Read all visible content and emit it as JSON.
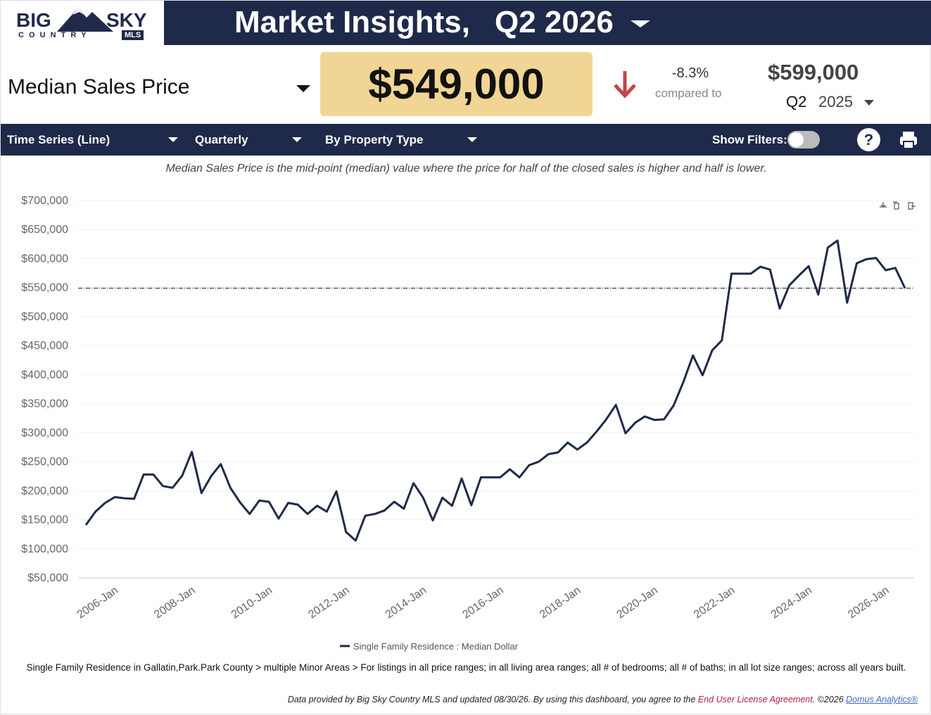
{
  "header": {
    "logo": {
      "big": "BIG",
      "sky": "SKY",
      "country": "C O U N T R Y",
      "mls": "MLS"
    },
    "title": "Market Insights,",
    "period": "Q2 2026"
  },
  "metric": {
    "name": "Median Sales Price",
    "value": "$549,000",
    "change": "-8.3%",
    "compared_label": "compared to",
    "compare_value": "$599,000",
    "compare_quarter": "Q2",
    "compare_year": "2025"
  },
  "toolbar": {
    "view": "Time Series (Line)",
    "interval": "Quarterly",
    "grouping": "By Property Type",
    "filters_label": "Show Filters:"
  },
  "description": "Median Sales Price is the mid-point (median) value where the price for half of the closed sales is higher and half is lower.",
  "chart_data": {
    "type": "line",
    "categories": [
      null,
      null,
      null,
      null,
      "2006-Jan",
      null,
      null,
      null,
      null,
      null,
      null,
      null,
      "2008-Jan",
      null,
      null,
      null,
      null,
      null,
      null,
      null,
      "2010-Jan",
      null,
      null,
      null,
      null,
      null,
      null,
      null,
      "2012-Jan",
      null,
      null,
      null,
      null,
      null,
      null,
      null,
      "2014-Jan",
      null,
      null,
      null,
      null,
      null,
      null,
      null,
      "2016-Jan",
      null,
      null,
      null,
      null,
      null,
      null,
      null,
      "2018-Jan",
      null,
      null,
      null,
      null,
      null,
      null,
      null,
      "2020-Jan",
      null,
      null,
      null,
      null,
      null,
      null,
      null,
      "2022-Jan",
      null,
      null,
      null,
      null,
      null,
      null,
      null,
      "2024-Jan",
      null,
      null,
      null,
      null,
      null,
      null,
      null,
      "2026-Jan",
      null
    ],
    "series": [
      {
        "name": "Single Family Residence : Median Dollar",
        "color": "#1f2a4a",
        "values": [
          141000,
          164000,
          179000,
          189000,
          187000,
          186000,
          228000,
          228000,
          208000,
          205000,
          226000,
          267000,
          196000,
          225000,
          246000,
          205000,
          180000,
          160000,
          183000,
          181000,
          152000,
          179000,
          176000,
          160000,
          174000,
          164000,
          199000,
          129000,
          114000,
          157000,
          160000,
          166000,
          181000,
          169000,
          213000,
          188000,
          149000,
          188000,
          174000,
          221000,
          175000,
          223000,
          223000,
          223000,
          237000,
          223000,
          244000,
          250000,
          263000,
          266000,
          283000,
          271000,
          283000,
          302000,
          323000,
          348000,
          299000,
          317000,
          328000,
          322000,
          323000,
          347000,
          387000,
          433000,
          399000,
          442000,
          459000,
          574000,
          574000,
          574000,
          586000,
          581000,
          514000,
          554000,
          571000,
          587000,
          538000,
          619000,
          631000,
          524000,
          592000,
          599000,
          601000,
          580000,
          584000,
          549000
        ]
      }
    ],
    "ylim": [
      50000,
      700000
    ],
    "yticks": [
      {
        "value": 50000,
        "label": "$50,000"
      },
      {
        "value": 100000,
        "label": "$100,000"
      },
      {
        "value": 150000,
        "label": "$150,000"
      },
      {
        "value": 200000,
        "label": "$200,000"
      },
      {
        "value": 250000,
        "label": "$250,000"
      },
      {
        "value": 300000,
        "label": "$300,000"
      },
      {
        "value": 350000,
        "label": "$350,000"
      },
      {
        "value": 400000,
        "label": "$400,000"
      },
      {
        "value": 450000,
        "label": "$450,000"
      },
      {
        "value": 500000,
        "label": "$500,000"
      },
      {
        "value": 550000,
        "label": "$550,000"
      },
      {
        "value": 600000,
        "label": "$600,000"
      },
      {
        "value": 650000,
        "label": "$650,000"
      },
      {
        "value": 700000,
        "label": "$700,000"
      }
    ],
    "grid": true
  },
  "filter_summary": "Single Family Residence in Gallatin,Park.Park County > multiple Minor Areas > For listings in all price ranges; in all living area ranges; all # of bedrooms; all # of baths; in all lot size ranges; across all years built.",
  "footer": {
    "text1": "Data provided by Big Sky Country MLS and updated 08/30/26.  By using this dashboard, you agree to the ",
    "link": "End User License Agreement",
    "text2": ".  ©2026 ",
    "brand": "Domus Analytics®"
  }
}
